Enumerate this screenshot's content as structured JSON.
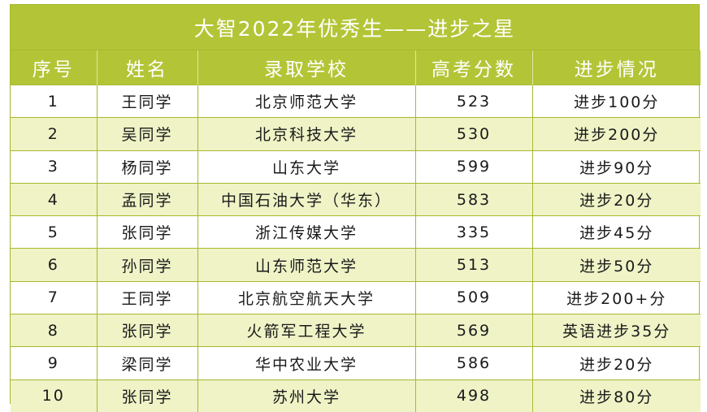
{
  "title": "大智2022年优秀生——进步之星",
  "columns": [
    "序号",
    "姓名",
    "录取学校",
    "高考分数",
    "进步情况"
  ],
  "rows": [
    [
      "1",
      "王同学",
      "北京师范大学",
      "523",
      "进步100分"
    ],
    [
      "2",
      "吴同学",
      "北京科技大学",
      "530",
      "进步200分"
    ],
    [
      "3",
      "杨同学",
      "山东大学",
      "599",
      "进步90分"
    ],
    [
      "4",
      "孟同学",
      "中国石油大学（华东）",
      "583",
      "进步20分"
    ],
    [
      "5",
      "张同学",
      "浙江传媒大学",
      "335",
      "进步45分"
    ],
    [
      "6",
      "孙同学",
      "山东师范大学",
      "513",
      "进步50分"
    ],
    [
      "7",
      "王同学",
      "北京航空航天大学",
      "509",
      "进步200+分"
    ],
    [
      "8",
      "张同学",
      "火箭军工程大学",
      "569",
      "英语进步35分"
    ],
    [
      "9",
      "梁同学",
      "华中农业大学",
      "586",
      "进步20分"
    ],
    [
      "10",
      "张同学",
      "苏州大学",
      "498",
      "进步80分"
    ]
  ],
  "colors": {
    "header_bg": "#b3c536",
    "alt_row_bg": "#eff3c6",
    "border": "#a8b82c"
  }
}
